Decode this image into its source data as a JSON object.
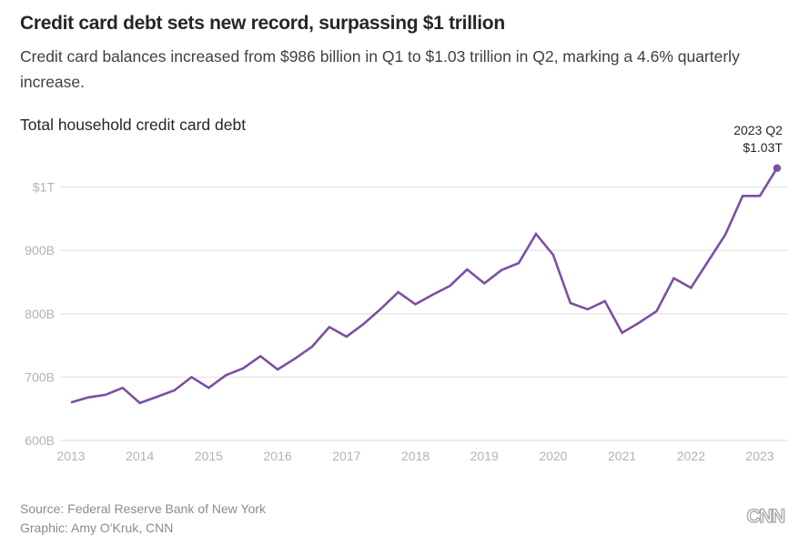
{
  "header": {
    "title": "Credit card debt sets new record, surpassing $1 trillion",
    "subtitle": "Credit card balances increased from $986 billion in Q1 to $1.03 trillion in Q2, marking a 4.6% quarterly increase."
  },
  "footer": {
    "source": "Source: Federal Reserve Bank of New York",
    "credit": "Graphic: Amy O'Kruk, CNN",
    "logo": "CNN"
  },
  "colors": {
    "series": "#7b4fa3",
    "grid": "#e6e6e6",
    "tick": "#b3b3b3"
  },
  "chart_data": {
    "type": "line",
    "title": "Total household credit card debt",
    "xlabel": "",
    "ylabel": "",
    "units": "billions of dollars",
    "grid": true,
    "legend": "none",
    "ylim": [
      600,
      1040
    ],
    "xlim": [
      2013.0,
      2023.25
    ],
    "yticks": [
      {
        "value": 600,
        "label": "600B"
      },
      {
        "value": 700,
        "label": "700B"
      },
      {
        "value": 800,
        "label": "800B"
      },
      {
        "value": 900,
        "label": "900B"
      },
      {
        "value": 1000,
        "label": "$1T"
      }
    ],
    "xticks": [
      {
        "value": 2013,
        "label": "2013"
      },
      {
        "value": 2014,
        "label": "2014"
      },
      {
        "value": 2015,
        "label": "2015"
      },
      {
        "value": 2016,
        "label": "2016"
      },
      {
        "value": 2017,
        "label": "2017"
      },
      {
        "value": 2018,
        "label": "2018"
      },
      {
        "value": 2019,
        "label": "2019"
      },
      {
        "value": 2020,
        "label": "2020"
      },
      {
        "value": 2021,
        "label": "2021"
      },
      {
        "value": 2022,
        "label": "2022"
      },
      {
        "value": 2023,
        "label": "2023"
      }
    ],
    "series": [
      {
        "name": "Total household credit card debt",
        "start": "2013 Q1",
        "frequency": "quarterly",
        "x": [
          "2013 Q1",
          "2013 Q2",
          "2013 Q3",
          "2013 Q4",
          "2014 Q1",
          "2014 Q2",
          "2014 Q3",
          "2014 Q4",
          "2015 Q1",
          "2015 Q2",
          "2015 Q3",
          "2015 Q4",
          "2016 Q1",
          "2016 Q2",
          "2016 Q3",
          "2016 Q4",
          "2017 Q1",
          "2017 Q2",
          "2017 Q3",
          "2017 Q4",
          "2018 Q1",
          "2018 Q2",
          "2018 Q3",
          "2018 Q4",
          "2019 Q1",
          "2019 Q2",
          "2019 Q3",
          "2019 Q4",
          "2020 Q1",
          "2020 Q2",
          "2020 Q3",
          "2020 Q4",
          "2021 Q1",
          "2021 Q2",
          "2021 Q3",
          "2021 Q4",
          "2022 Q1",
          "2022 Q2",
          "2022 Q3",
          "2022 Q4",
          "2023 Q1",
          "2023 Q2"
        ],
        "values": [
          660,
          668,
          672,
          683,
          659,
          669,
          679,
          700,
          683,
          703,
          714,
          733,
          712,
          729,
          748,
          779,
          764,
          784,
          808,
          834,
          815,
          830,
          844,
          870,
          848,
          869,
          880,
          926,
          893,
          817,
          807,
          820,
          770,
          786,
          804,
          856,
          841,
          883,
          925,
          986,
          986,
          1030
        ]
      }
    ],
    "annotations": [
      {
        "point": "2023 Q2",
        "line1": "2023 Q2",
        "line2": "$1.03T"
      }
    ]
  }
}
